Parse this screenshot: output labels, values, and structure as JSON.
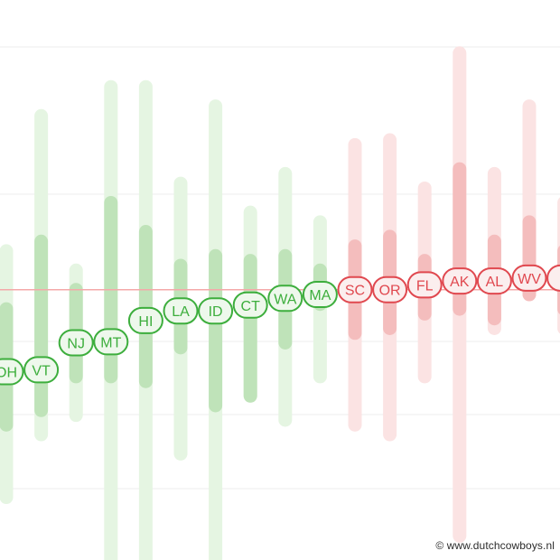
{
  "chart_data": {
    "type": "scatter",
    "title": "",
    "xlabel": "",
    "ylabel": "",
    "grid": true,
    "legend": "none",
    "ylim": [
      -0.28,
      0.3
    ],
    "reference_line": {
      "value": 0.0,
      "color": "#f4a9a9"
    },
    "colors": {
      "green": "#3dae3d",
      "green_fill": "#eef8ec",
      "red": "#e0484f",
      "red_fill": "#fbeeee",
      "outer_green": "#e5f5e2",
      "inner_green": "#bfe3b9",
      "outer_red": "#fbe3e3",
      "inner_red": "#f4bdbd"
    },
    "points": [
      {
        "label": "OH",
        "side": "green",
        "value": -0.085,
        "outer": [
          -0.215,
          0.04
        ],
        "inner": [
          -0.14,
          -0.02
        ]
      },
      {
        "label": "VT",
        "side": "green",
        "value": -0.083,
        "outer": [
          -0.15,
          0.18
        ],
        "inner": [
          -0.125,
          0.05
        ]
      },
      {
        "label": "NJ",
        "side": "green",
        "value": -0.055,
        "outer": [
          -0.13,
          0.02
        ],
        "inner": [
          -0.09,
          0.0
        ]
      },
      {
        "label": "MT",
        "side": "green",
        "value": -0.054,
        "outer": [
          -0.28,
          0.21
        ],
        "inner": [
          -0.09,
          0.09
        ]
      },
      {
        "label": "HI",
        "side": "green",
        "value": -0.032,
        "outer": [
          -0.28,
          0.21
        ],
        "inner": [
          -0.095,
          0.06
        ]
      },
      {
        "label": "LA",
        "side": "green",
        "value": -0.022,
        "outer": [
          -0.17,
          0.11
        ],
        "inner": [
          -0.06,
          0.025
        ]
      },
      {
        "label": "ID",
        "side": "green",
        "value": -0.022,
        "outer": [
          -0.28,
          0.19
        ],
        "inner": [
          -0.12,
          0.035
        ]
      },
      {
        "label": "CT",
        "side": "green",
        "value": -0.016,
        "outer": [
          -0.11,
          0.08
        ],
        "inner": [
          -0.11,
          0.03
        ]
      },
      {
        "label": "WA",
        "side": "green",
        "value": -0.009,
        "outer": [
          -0.135,
          0.12
        ],
        "inner": [
          -0.055,
          0.035
        ]
      },
      {
        "label": "MA",
        "side": "green",
        "value": -0.005,
        "outer": [
          -0.09,
          0.07
        ],
        "inner": [
          -0.015,
          0.02
        ]
      },
      {
        "label": "SC",
        "side": "red",
        "value": 0.0,
        "outer": [
          -0.14,
          0.15
        ],
        "inner": [
          -0.045,
          0.045
        ]
      },
      {
        "label": "OR",
        "side": "red",
        "value": 0.0,
        "outer": [
          -0.15,
          0.155
        ],
        "inner": [
          -0.04,
          0.055
        ]
      },
      {
        "label": "FL",
        "side": "red",
        "value": 0.005,
        "outer": [
          -0.09,
          0.105
        ],
        "inner": [
          -0.025,
          0.03
        ]
      },
      {
        "label": "AK",
        "side": "red",
        "value": 0.009,
        "outer": [
          -0.255,
          0.245
        ],
        "inner": [
          -0.02,
          0.125
        ]
      },
      {
        "label": "AL",
        "side": "red",
        "value": 0.009,
        "outer": [
          -0.04,
          0.12
        ],
        "inner": [
          -0.03,
          0.05
        ]
      },
      {
        "label": "WV",
        "side": "red",
        "value": 0.012,
        "outer": [
          -0.005,
          0.19
        ],
        "inner": [
          -0.005,
          0.07
        ]
      },
      {
        "label": "T",
        "side": "red",
        "value": 0.012,
        "outer": [
          -0.04,
          0.09
        ],
        "inner": [
          -0.02,
          0.04
        ]
      }
    ]
  },
  "credit": "© www.dutchcowboys.nl"
}
